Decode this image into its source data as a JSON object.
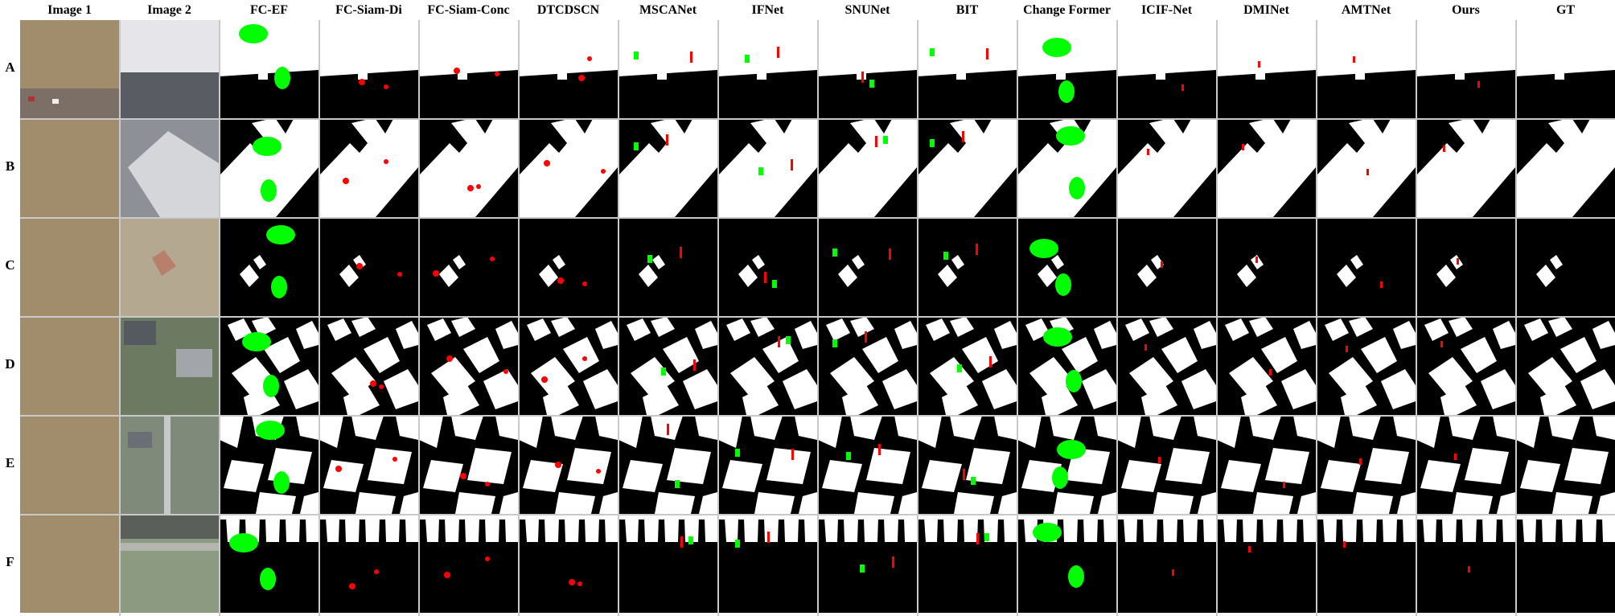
{
  "figure": {
    "columns": [
      "Image 1",
      "Image 2",
      "FC-EF",
      "FC-Siam-Di",
      "FC-Siam-Conc",
      "DTCDSCN",
      "MSCANet",
      "IFNet",
      "SNUNet",
      "BIT",
      "Change Former",
      "ICIF-Net",
      "DMINet",
      "AMTNet",
      "Ours",
      "GT"
    ],
    "rows": [
      "A",
      "B",
      "C",
      "D",
      "E",
      "F"
    ]
  },
  "legend_colors": {
    "true_positive": "#ffffff",
    "true_negative": "#000000",
    "false_positive": "#ff0000",
    "false_negative": "#00ff00"
  }
}
